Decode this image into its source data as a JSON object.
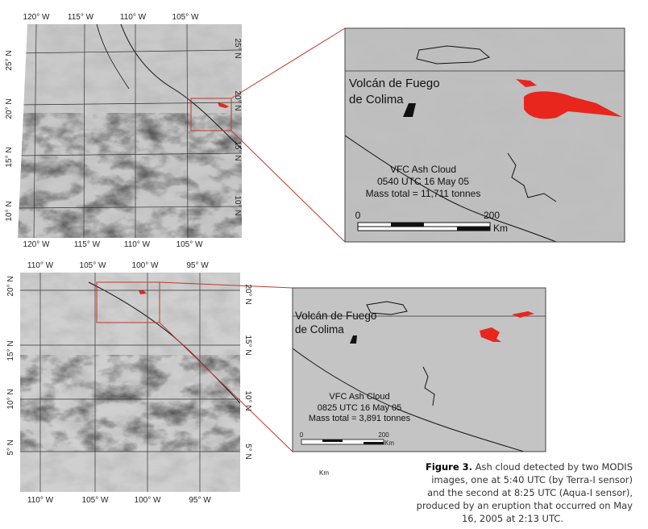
{
  "figure": {
    "top_panel": {
      "lon_labels": [
        "120° W",
        "115° W",
        "110° W",
        "105° W"
      ],
      "lat_labels": [
        "25° N",
        "20° N",
        "15° N",
        "10° N"
      ],
      "inset": {
        "volcano": [
          "Volcán de Fuego",
          "de Colima"
        ],
        "cloud": [
          "VFC Ash Cloud",
          "0540 UTC 16 May 05",
          "Mass total = 11,711 tonnes"
        ],
        "scale": [
          "0",
          "200",
          "Km"
        ]
      }
    },
    "bottom_panel": {
      "lon_labels": [
        "110° W",
        "105° W",
        "100° W",
        "95° W"
      ],
      "lat_labels": [
        "20° N",
        "15° N",
        "10° N",
        "5° N"
      ],
      "inset": {
        "volcano": [
          "Volcán de Fuego",
          "de Colima"
        ],
        "cloud": [
          "VFC Ash Cloud",
          "0825 UTC 16 May 05",
          "Mass total = 3,891 tonnes"
        ],
        "scale": [
          "0",
          "200",
          "Km"
        ]
      },
      "stray_label": "Km"
    },
    "caption": {
      "label": "Figure 3.",
      "lines": [
        " Ash cloud detected by two MODIS",
        "images, one at 5:40 UTC (by Terra-I sensor)",
        "and the second at 8:25 UTC (Aqua-I sensor),",
        "produced by an eruption that occurred on May",
        "16, 2005 at 2:13 UTC."
      ]
    }
  }
}
